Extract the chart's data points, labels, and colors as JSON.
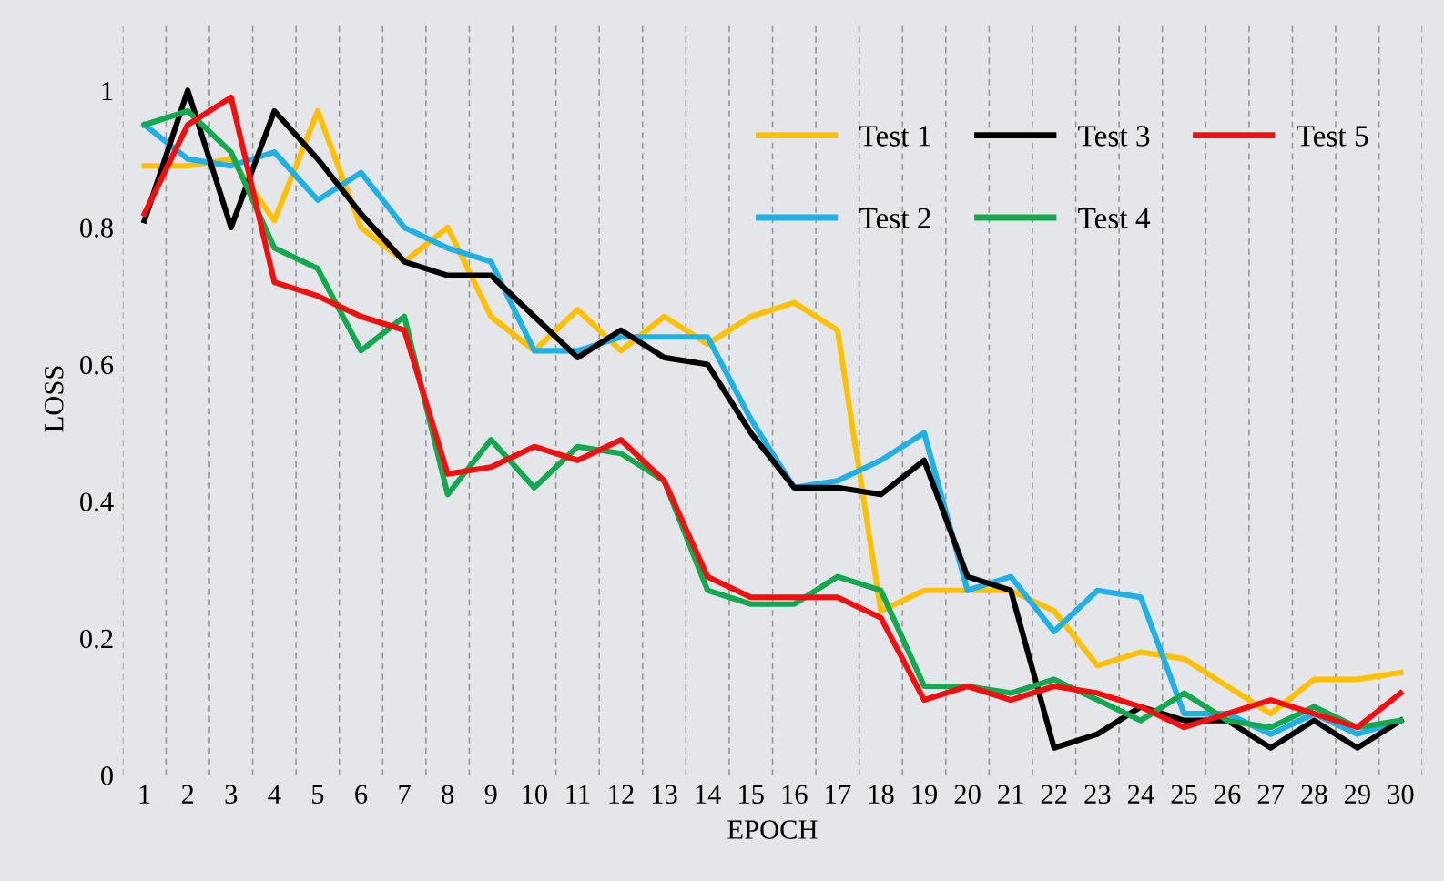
{
  "chart_data": {
    "type": "line",
    "xlabel": "EPOCH",
    "ylabel": "LOSS",
    "categories": [
      "1",
      "2",
      "3",
      "4",
      "5",
      "6",
      "7",
      "8",
      "9",
      "10",
      "11",
      "12",
      "13",
      "14",
      "15",
      "16",
      "17",
      "18",
      "19",
      "20",
      "21",
      "22",
      "23",
      "24",
      "25",
      "26",
      "27",
      "28",
      "29",
      "30"
    ],
    "ylim": [
      0,
      1.1
    ],
    "yticks": [
      0,
      0.2,
      0.4,
      0.6,
      0.8,
      1
    ],
    "grid": "x",
    "legend": "top right",
    "series": [
      {
        "name": "Test 1",
        "color": "#ffc000",
        "values": [
          0.89,
          0.89,
          0.9,
          0.81,
          0.97,
          0.8,
          0.75,
          0.8,
          0.67,
          0.62,
          0.68,
          0.62,
          0.67,
          0.63,
          0.67,
          0.69,
          0.65,
          0.24,
          0.27,
          0.27,
          0.27,
          0.24,
          0.16,
          0.18,
          0.17,
          0.13,
          0.09,
          0.14,
          0.14,
          0.15
        ]
      },
      {
        "name": "Test 2",
        "color": "#1fb0e6",
        "values": [
          0.95,
          0.9,
          0.89,
          0.91,
          0.84,
          0.88,
          0.8,
          0.77,
          0.75,
          0.62,
          0.62,
          0.64,
          0.64,
          0.64,
          0.52,
          0.42,
          0.43,
          0.46,
          0.5,
          0.27,
          0.29,
          0.21,
          0.27,
          0.26,
          0.09,
          0.09,
          0.06,
          0.09,
          0.06,
          0.08
        ]
      },
      {
        "name": "Test 3",
        "color": "#000000",
        "values": [
          0.81,
          1.0,
          0.8,
          0.97,
          0.9,
          0.82,
          0.75,
          0.73,
          0.73,
          0.67,
          0.61,
          0.65,
          0.61,
          0.6,
          0.5,
          0.42,
          0.42,
          0.41,
          0.46,
          0.29,
          0.27,
          0.04,
          0.06,
          0.1,
          0.08,
          0.08,
          0.04,
          0.08,
          0.04,
          0.08
        ]
      },
      {
        "name": "Test 4",
        "color": "#14a850",
        "values": [
          0.95,
          0.97,
          0.91,
          0.77,
          0.74,
          0.62,
          0.67,
          0.41,
          0.49,
          0.42,
          0.48,
          0.47,
          0.43,
          0.27,
          0.25,
          0.25,
          0.29,
          0.27,
          0.13,
          0.13,
          0.12,
          0.14,
          0.11,
          0.08,
          0.12,
          0.08,
          0.07,
          0.1,
          0.07,
          0.08
        ]
      },
      {
        "name": "Test 5",
        "color": "#f01010",
        "values": [
          0.82,
          0.95,
          0.99,
          0.72,
          0.7,
          0.67,
          0.65,
          0.44,
          0.45,
          0.48,
          0.46,
          0.49,
          0.43,
          0.29,
          0.26,
          0.26,
          0.26,
          0.23,
          0.11,
          0.13,
          0.11,
          0.13,
          0.12,
          0.1,
          0.07,
          0.09,
          0.11,
          0.09,
          0.07,
          0.12
        ]
      }
    ]
  }
}
